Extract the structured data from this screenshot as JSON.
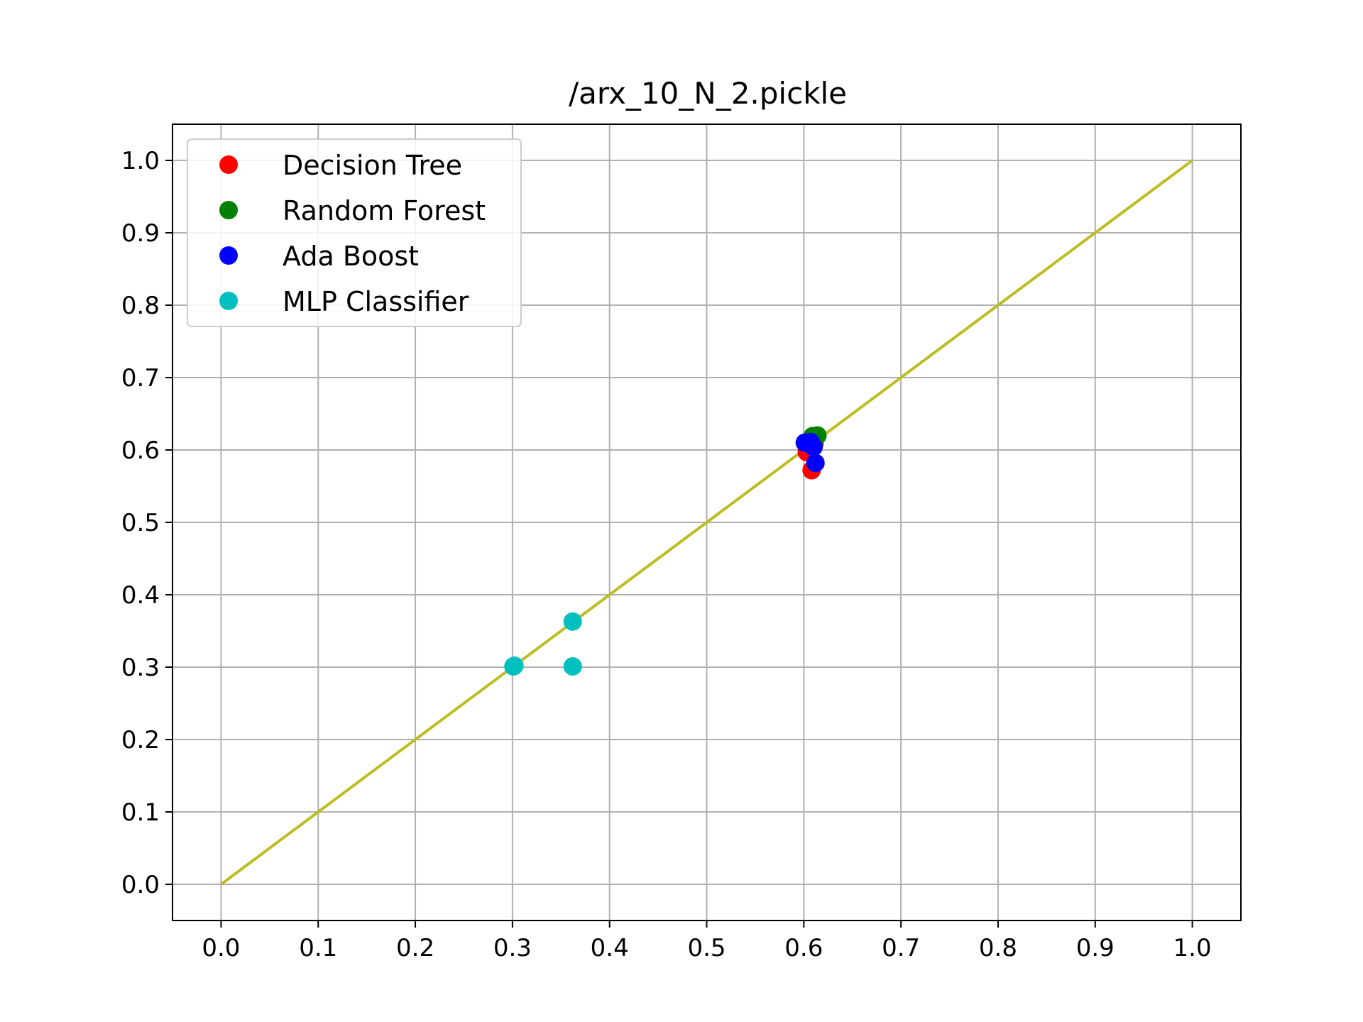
{
  "chart_data": {
    "type": "scatter",
    "title": "/arx_10_N_2.pickle",
    "xlabel": "",
    "ylabel": "",
    "xlim": [
      -0.05,
      1.05
    ],
    "ylim": [
      -0.05,
      1.05
    ],
    "xticks": [
      "0.0",
      "0.1",
      "0.2",
      "0.3",
      "0.4",
      "0.5",
      "0.6",
      "0.7",
      "0.8",
      "0.9",
      "1.0"
    ],
    "yticks": [
      "0.0",
      "0.1",
      "0.2",
      "0.3",
      "0.4",
      "0.5",
      "0.6",
      "0.7",
      "0.8",
      "0.9",
      "1.0"
    ],
    "grid": true,
    "legend_position": "top-left",
    "series": [
      {
        "name": "Decision Tree",
        "color": "#ff0000",
        "points": [
          [
            0.603,
            0.597
          ],
          [
            0.608,
            0.572
          ],
          [
            0.611,
            0.609
          ]
        ]
      },
      {
        "name": "Random Forest",
        "color": "#008000",
        "points": [
          [
            0.609,
            0.619
          ],
          [
            0.614,
            0.62
          ],
          [
            0.611,
            0.613
          ]
        ]
      },
      {
        "name": "Ada Boost",
        "color": "#0000ff",
        "points": [
          [
            0.601,
            0.61
          ],
          [
            0.607,
            0.611
          ],
          [
            0.612,
            0.582
          ],
          [
            0.61,
            0.604
          ]
        ]
      },
      {
        "name": "MLP Classifier",
        "color": "#00bfbf",
        "points": [
          [
            0.301,
            0.301
          ],
          [
            0.362,
            0.363
          ],
          [
            0.362,
            0.301
          ],
          [
            0.302,
            0.302
          ]
        ]
      }
    ],
    "reference_line": {
      "color": "#bcbd22",
      "from": [
        0,
        0
      ],
      "to": [
        1,
        1
      ]
    }
  }
}
